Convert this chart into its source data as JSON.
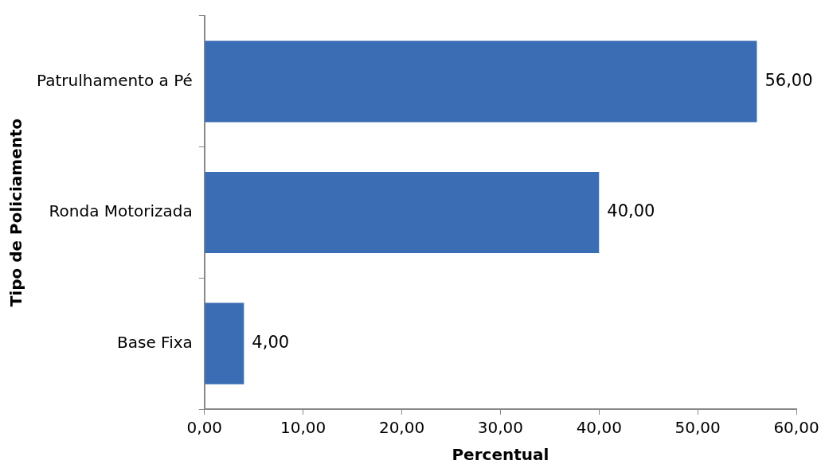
{
  "chart_data": {
    "type": "bar",
    "orientation": "horizontal",
    "xlabel": "Percentual",
    "ylabel": "Tipo de Policiamento",
    "categories": [
      "Patrulhamento a Pé",
      "Ronda Motorizada",
      "Base Fixa"
    ],
    "values": [
      56,
      40,
      4
    ],
    "color": "#3a6db3",
    "value_labels": [
      "56,00",
      "40,00",
      "4,00"
    ],
    "xlim": [
      0,
      60
    ],
    "xticks": [
      {
        "value": 0,
        "label": "0,00"
      },
      {
        "value": 10,
        "label": "10,00"
      },
      {
        "value": 20,
        "label": "20,00"
      },
      {
        "value": 30,
        "label": "30,00"
      },
      {
        "value": 40,
        "label": "40,00"
      },
      {
        "value": 50,
        "label": "50,00"
      },
      {
        "value": 60,
        "label": "60,00"
      }
    ],
    "grid": false,
    "legend": false
  }
}
